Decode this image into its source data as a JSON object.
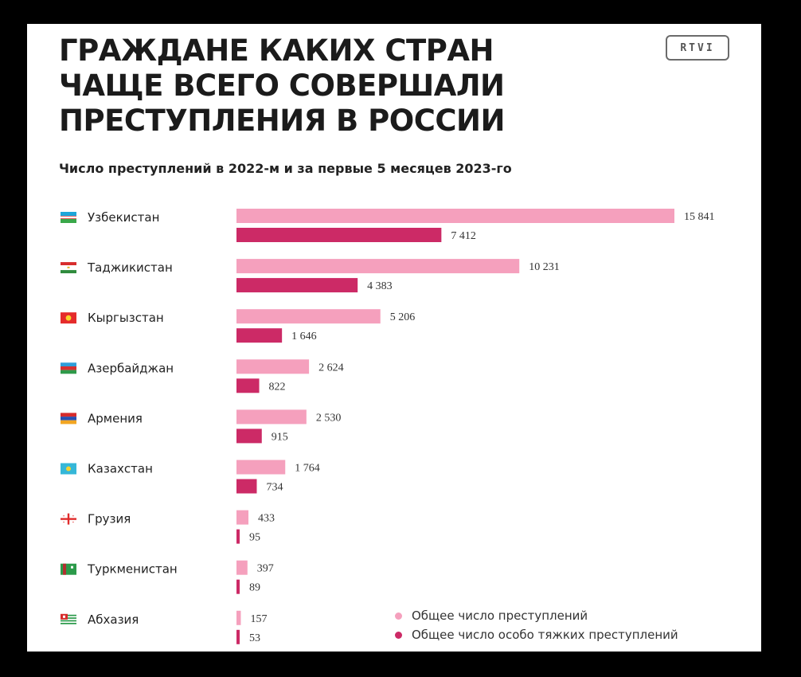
{
  "header": {
    "title_lines": [
      "ГРАЖДАНЕ КАКИХ СТРАН",
      "ЧАЩЕ ВСЕГО СОВЕРШАЛИ",
      "ПРЕСТУПЛЕНИЯ В РОССИИ"
    ],
    "logo_text": "RTVI",
    "subtitle": "Число преступлений в 2022-м и за первые 5 месяцев 2023-го"
  },
  "colors": {
    "total": "#f5a0bd",
    "grave": "#cc2a66",
    "text": "#222222",
    "background": "#ffffff"
  },
  "legend": {
    "total_label": "Общее число преступлений",
    "grave_label": "Общее число особо тяжких преступлений"
  },
  "chart_data": {
    "type": "bar",
    "orientation": "horizontal",
    "title": "",
    "categories": [
      "Узбекистан",
      "Таджикистан",
      "Кыргызстан",
      "Азербайджан",
      "Армения",
      "Казахстан",
      "Грузия",
      "Туркменистан",
      "Абхазия"
    ],
    "flags": [
      "uzbekistan-flag",
      "tajikistan-flag",
      "kyrgyzstan-flag",
      "azerbaijan-flag",
      "armenia-flag",
      "kazakhstan-flag",
      "georgia-flag",
      "turkmenistan-flag",
      "abkhazia-flag"
    ],
    "series": [
      {
        "name": "Общее число преступлений",
        "values": [
          15841,
          10231,
          5206,
          2624,
          2530,
          1764,
          433,
          397,
          157
        ],
        "labels": [
          "15 841",
          "10 231",
          "5 206",
          "2 624",
          "2 530",
          "1 764",
          "433",
          "397",
          "157"
        ]
      },
      {
        "name": "Общее число особо тяжких преступлений",
        "values": [
          7412,
          4383,
          1646,
          822,
          915,
          734,
          95,
          89,
          53
        ],
        "labels": [
          "7 412",
          "4 383",
          "1 646",
          "822",
          "915",
          "734",
          "95",
          "89",
          "53"
        ]
      }
    ],
    "xlim": [
      0,
      15841
    ],
    "grid": false,
    "legend_position": "bottom-right"
  }
}
